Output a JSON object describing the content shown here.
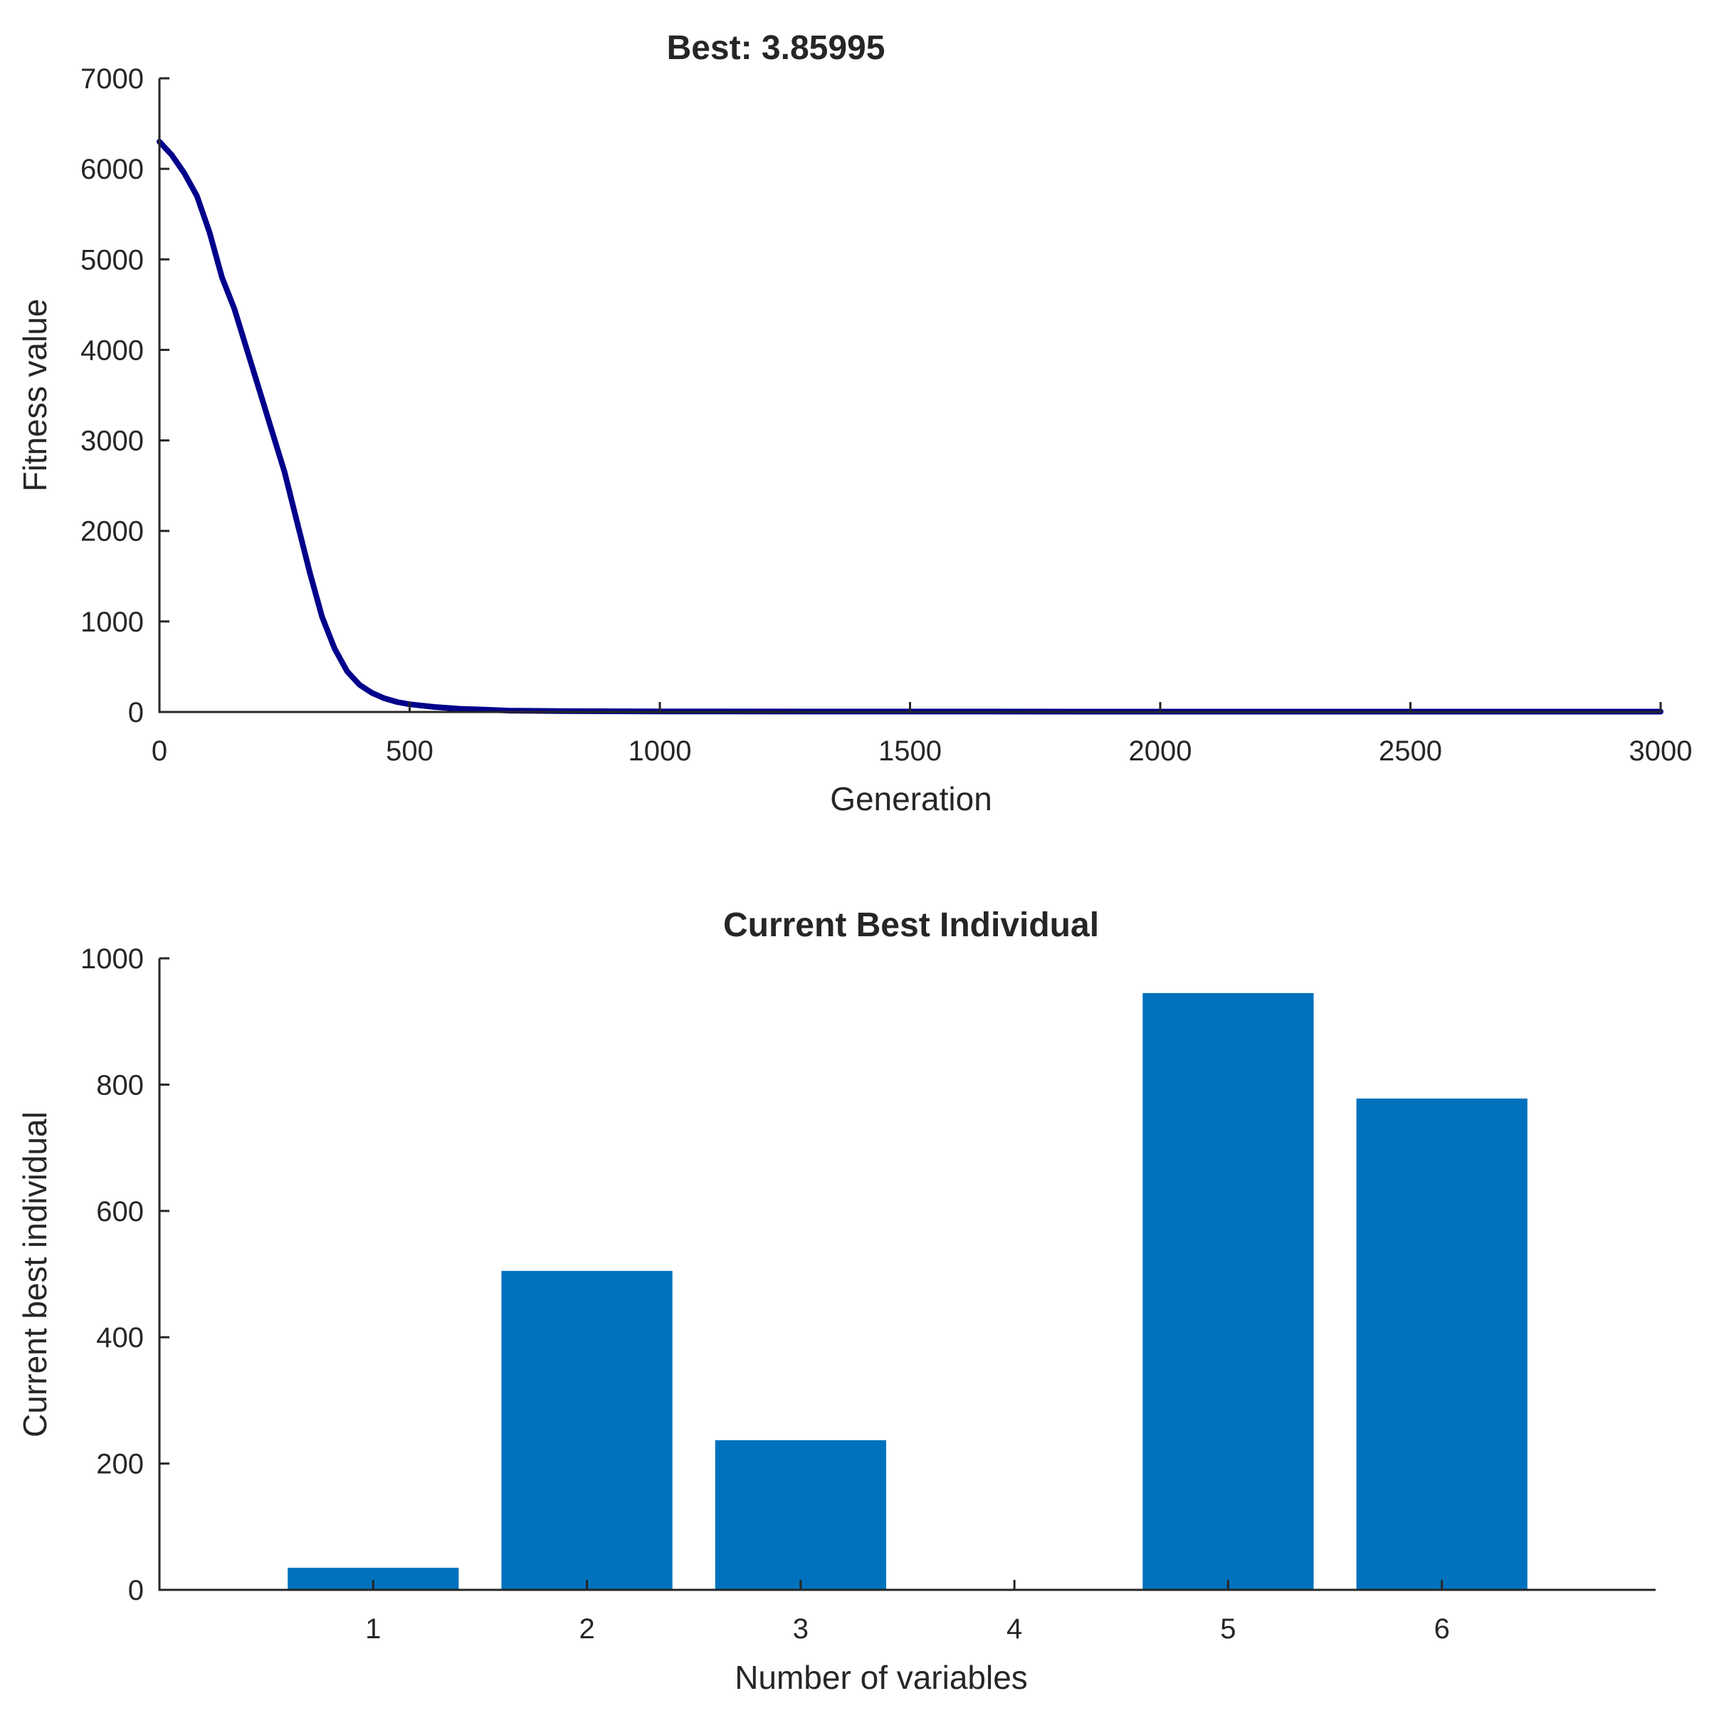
{
  "chart_data": [
    {
      "type": "line",
      "title": "Best: 3.85995",
      "xlabel": "Generation",
      "ylabel": "Fitness value",
      "xlim": [
        0,
        3000
      ],
      "ylim": [
        0,
        7000
      ],
      "xticks": [
        0,
        500,
        1000,
        1500,
        2000,
        2500,
        3000
      ],
      "yticks": [
        0,
        1000,
        2000,
        3000,
        4000,
        5000,
        6000,
        7000
      ],
      "grid": false,
      "line_color": "#00008B",
      "series": [
        {
          "x": [
            0,
            25,
            50,
            75,
            100,
            125,
            150,
            175,
            200,
            225,
            250,
            275,
            300,
            325,
            350,
            375,
            400,
            425,
            450,
            475,
            500,
            550,
            600,
            650,
            700,
            800,
            1000,
            1500,
            2000,
            2500,
            3000
          ],
          "values": [
            6300,
            6150,
            5950,
            5700,
            5300,
            4800,
            4450,
            4000,
            3550,
            3100,
            2650,
            2100,
            1550,
            1050,
            700,
            450,
            300,
            210,
            150,
            110,
            85,
            55,
            35,
            25,
            15,
            10,
            6,
            4.5,
            4,
            3.9,
            3.86
          ]
        }
      ]
    },
    {
      "type": "bar",
      "title": "Current Best Individual",
      "xlabel": "Number of variables",
      "ylabel": "Current best individual",
      "categories": [
        "1",
        "2",
        "3",
        "4",
        "5",
        "6"
      ],
      "values": [
        35,
        505,
        237,
        0,
        945,
        778
      ],
      "ylim": [
        0,
        1000
      ],
      "yticks": [
        0,
        200,
        400,
        600,
        800,
        1000
      ],
      "grid": false,
      "bar_color": "#0072BD"
    }
  ]
}
